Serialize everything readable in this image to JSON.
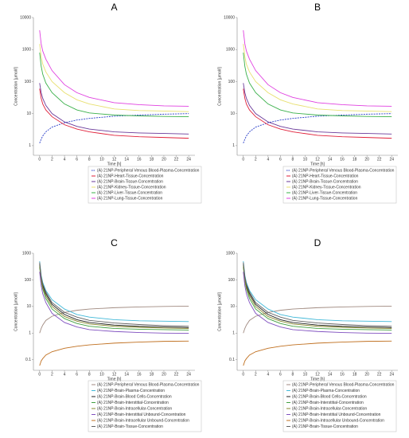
{
  "chart_data": [
    {
      "type": "line",
      "title": "A",
      "xlabel": "Time [h]",
      "ylabel": "Concentration [µmol/l]",
      "log_y": true,
      "x": [
        0,
        0.25,
        0.5,
        1,
        2,
        4,
        6,
        8,
        12,
        16,
        20,
        24
      ],
      "xlim": [
        -1,
        25
      ],
      "xticks": [
        0,
        2,
        4,
        6,
        8,
        10,
        12,
        14,
        16,
        18,
        20,
        22,
        24
      ],
      "ylim": [
        0.5,
        10000
      ],
      "yticks": [
        1,
        10,
        100,
        1000,
        10000
      ],
      "series": [
        {
          "name": "(A) 21NP-Peripheral Venous Blood-Plasma-Concentration",
          "color": "#2a3fc9",
          "dashed": true,
          "values": [
            1.2,
            1.6,
            2,
            2.7,
            3.8,
            5.2,
            6.3,
            7.1,
            8.3,
            9,
            9.6,
            10
          ]
        },
        {
          "name": "(A) 21NP-Heart-Tissue-Concentration",
          "color": "#e0203a",
          "values": [
            60,
            30,
            20,
            13,
            8,
            4.5,
            3.3,
            2.7,
            2.1,
            1.9,
            1.8,
            1.7
          ]
        },
        {
          "name": "(A) 21NP-Brain-Tissue-Concentration",
          "color": "#6a3a9a",
          "values": [
            90,
            45,
            30,
            18,
            10,
            5.5,
            4,
            3.3,
            2.7,
            2.5,
            2.4,
            2.3
          ]
        },
        {
          "name": "(A) 21NP-Kidney-Tissue-Concentration",
          "color": "#e8e070",
          "values": [
            1500,
            600,
            350,
            200,
            100,
            45,
            27,
            20,
            14,
            12.5,
            12,
            11.5
          ]
        },
        {
          "name": "(A) 21NP-Liver-Tissue-Concentration",
          "color": "#3ab04a",
          "values": [
            800,
            300,
            170,
            90,
            45,
            20,
            13,
            10.5,
            9,
            8.5,
            8.2,
            8
          ]
        },
        {
          "name": "(A) 21NP-Lung-Tissue-Concentration",
          "color": "#e040e0",
          "values": [
            4000,
            1500,
            900,
            500,
            220,
            80,
            45,
            32,
            22,
            19,
            17.5,
            17
          ]
        }
      ]
    },
    {
      "type": "line",
      "title": "B",
      "xlabel": "Time [h]",
      "ylabel": "Concentration [µmol/l]",
      "log_y": true,
      "x": [
        0,
        0.25,
        0.5,
        1,
        2,
        4,
        6,
        8,
        12,
        16,
        20,
        24
      ],
      "xlim": [
        -1,
        25
      ],
      "xticks": [
        0,
        2,
        4,
        6,
        8,
        10,
        12,
        14,
        16,
        18,
        20,
        22,
        24
      ],
      "ylim": [
        0.5,
        10000
      ],
      "yticks": [
        1,
        10,
        100,
        1000,
        10000
      ],
      "series": [
        {
          "name": "(A) 21NP-Peripheral Venous Blood-Plasma-Concentration",
          "color": "#2a3fc9",
          "dashed": true,
          "values": [
            1.2,
            1.6,
            2,
            2.7,
            3.8,
            5.2,
            6.3,
            7.1,
            8.3,
            9,
            9.6,
            10
          ]
        },
        {
          "name": "(A) 21NP-Heart-Tissue-Concentration",
          "color": "#e0203a",
          "values": [
            60,
            30,
            20,
            13,
            8,
            4.5,
            3.3,
            2.7,
            2.1,
            1.9,
            1.8,
            1.7
          ]
        },
        {
          "name": "(A) 21NP-Brain-Tissue-Concentration",
          "color": "#6a3a9a",
          "values": [
            90,
            45,
            30,
            18,
            10,
            5.5,
            4,
            3.3,
            2.7,
            2.5,
            2.4,
            2.3
          ]
        },
        {
          "name": "(A) 21NP-Kidney-Tissue-Concentration",
          "color": "#e8e070",
          "values": [
            1500,
            600,
            350,
            200,
            100,
            45,
            27,
            20,
            14,
            12.5,
            12,
            11.5
          ]
        },
        {
          "name": "(A) 21NP-Liver-Tissue-Concentration",
          "color": "#3ab04a",
          "values": [
            800,
            300,
            170,
            90,
            45,
            20,
            13,
            10.5,
            9,
            8.5,
            8.2,
            8
          ]
        },
        {
          "name": "(A) 21NP-Lung-Tissue-Concentration",
          "color": "#e040e0",
          "values": [
            4000,
            1500,
            900,
            500,
            220,
            80,
            45,
            32,
            22,
            19,
            17.5,
            17
          ]
        }
      ]
    },
    {
      "type": "line",
      "title": "C",
      "xlabel": "Time [h]",
      "ylabel": "Concentration [µmol/l]",
      "log_y": true,
      "x": [
        0,
        0.25,
        0.5,
        1,
        2,
        4,
        6,
        8,
        12,
        16,
        20,
        24
      ],
      "xlim": [
        -1,
        25
      ],
      "xticks": [
        0,
        2,
        4,
        6,
        8,
        10,
        12,
        14,
        16,
        18,
        20,
        22,
        24
      ],
      "ylim": [
        0.04,
        1000
      ],
      "yticks": [
        0.1,
        1,
        10,
        100,
        1000
      ],
      "series": [
        {
          "name": "(A) 21NP-Peripheral Venous Blood-Plasma-Concentration",
          "color": "#a08a80",
          "values": [
            1,
            1.5,
            2,
            3,
            4.3,
            6,
            7.2,
            8,
            9,
            9.6,
            10,
            10.3
          ]
        },
        {
          "name": "(A) 21NP-Brain-Plasma-Concentration",
          "color": "#40b8d8",
          "values": [
            500,
            150,
            80,
            40,
            18,
            8,
            5,
            4,
            3.2,
            2.9,
            2.8,
            2.7
          ]
        },
        {
          "name": "(A) 21NP-Brain-Blood Cells-Concentration",
          "color": "#202020",
          "values": [
            400,
            120,
            60,
            30,
            12,
            5,
            3.2,
            2.5,
            2,
            1.8,
            1.7,
            1.6
          ]
        },
        {
          "name": "(A) 21NP-Brain-Interstitial-Concentration",
          "color": "#40a040",
          "values": [
            300,
            90,
            45,
            20,
            8,
            3.5,
            2.3,
            1.8,
            1.5,
            1.4,
            1.35,
            1.3
          ]
        },
        {
          "name": "(A) 21NP-Brain-Intracellular-Concentration",
          "color": "#8a8a30",
          "values": [
            350,
            100,
            50,
            25,
            10,
            4.2,
            2.8,
            2.2,
            1.8,
            1.65,
            1.55,
            1.5
          ]
        },
        {
          "name": "(A) 21NP-Brain-Interstitial Unbound-Concentration",
          "color": "#8050c0",
          "values": [
            200,
            60,
            30,
            14,
            5.5,
            2.5,
            1.7,
            1.35,
            1.15,
            1.05,
            1,
            0.98
          ]
        },
        {
          "name": "(A) 21NP-Brain-Intracellular Unbound-Concentration",
          "color": "#c07020",
          "values": [
            0.06,
            0.09,
            0.11,
            0.15,
            0.2,
            0.27,
            0.32,
            0.36,
            0.42,
            0.46,
            0.49,
            0.5
          ]
        },
        {
          "name": "(A) 21NP-Brain-Tissue-Concentration",
          "color": "#606060",
          "values": [
            450,
            130,
            70,
            35,
            14,
            6,
            4,
            3,
            2.4,
            2.1,
            1.9,
            1.8
          ]
        }
      ]
    },
    {
      "type": "line",
      "title": "D",
      "xlabel": "Time [h]",
      "ylabel": "Concentration [µmol/l]",
      "log_y": true,
      "x": [
        0,
        0.25,
        0.5,
        1,
        2,
        4,
        6,
        8,
        12,
        16,
        20,
        24
      ],
      "xlim": [
        -1,
        25
      ],
      "xticks": [
        0,
        2,
        4,
        6,
        8,
        10,
        12,
        14,
        16,
        18,
        20,
        22,
        24
      ],
      "ylim": [
        0.04,
        1000
      ],
      "yticks": [
        0.1,
        1,
        10,
        100,
        1000
      ],
      "series": [
        {
          "name": "(A) 21NP-Peripheral Venous Blood-Plasma-Concentration",
          "color": "#a08a80",
          "values": [
            1,
            1.5,
            2,
            3,
            4.3,
            6,
            7.2,
            8,
            9,
            9.6,
            10,
            10.3
          ]
        },
        {
          "name": "(A) 21NP-Brain-Plasma-Concentration",
          "color": "#40b8d8",
          "values": [
            500,
            150,
            80,
            40,
            18,
            8,
            5,
            4,
            3.2,
            2.9,
            2.8,
            2.7
          ]
        },
        {
          "name": "(A) 21NP-Brain-Blood Cells-Concentration",
          "color": "#202020",
          "values": [
            400,
            120,
            60,
            30,
            12,
            5,
            3.2,
            2.5,
            2,
            1.8,
            1.7,
            1.6
          ]
        },
        {
          "name": "(A) 21NP-Brain-Interstitial-Concentration",
          "color": "#40a040",
          "values": [
            300,
            90,
            45,
            20,
            8,
            3.5,
            2.3,
            1.8,
            1.5,
            1.4,
            1.35,
            1.3
          ]
        },
        {
          "name": "(A) 21NP-Brain-Intracellular-Concentration",
          "color": "#8a8a30",
          "values": [
            350,
            100,
            50,
            25,
            10,
            4.2,
            2.8,
            2.2,
            1.8,
            1.65,
            1.55,
            1.5
          ]
        },
        {
          "name": "(A) 21NP-Brain-Interstitial Unbound-Concentration",
          "color": "#8050c0",
          "values": [
            200,
            60,
            30,
            14,
            5.5,
            2.5,
            1.7,
            1.35,
            1.15,
            1.05,
            1,
            0.98
          ]
        },
        {
          "name": "(A) 21NP-Brain-Intracellular Unbound-Concentration",
          "color": "#c07020",
          "values": [
            0.06,
            0.09,
            0.11,
            0.15,
            0.2,
            0.27,
            0.32,
            0.36,
            0.42,
            0.46,
            0.49,
            0.5
          ]
        },
        {
          "name": "(A) 21NP-Brain-Tissue-Concentration",
          "color": "#606060",
          "values": [
            450,
            130,
            70,
            35,
            14,
            6,
            4,
            3,
            2.4,
            2.1,
            1.9,
            1.8
          ]
        }
      ]
    }
  ]
}
